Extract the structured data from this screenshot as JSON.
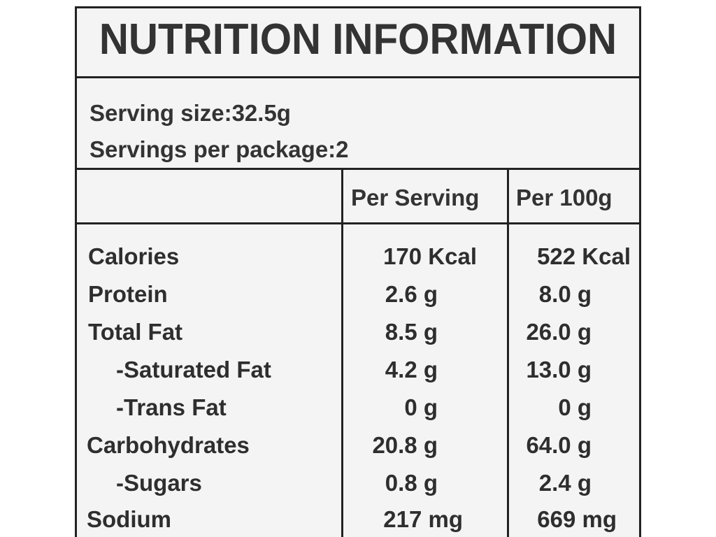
{
  "title": "NUTRITION INFORMATION",
  "serving": {
    "size_line": "Serving size:32.5g",
    "per_package_line": "Servings per package:2"
  },
  "columns": {
    "per_serving": "Per Serving",
    "per_100g": "Per 100g"
  },
  "rows": [
    {
      "nutrient": "Calories",
      "per_serving": "170 Kcal",
      "per_100g": "522 Kcal"
    },
    {
      "nutrient": "Protein",
      "per_serving": "2.6 g",
      "per_100g": "8.0 g"
    },
    {
      "nutrient": "Total Fat",
      "per_serving": "8.5 g",
      "per_100g": "26.0 g"
    },
    {
      "nutrient": "-Saturated Fat",
      "per_serving": "4.2 g",
      "per_100g": "13.0 g"
    },
    {
      "nutrient": "-Trans Fat",
      "per_serving": "0 g",
      "per_100g": "0 g"
    },
    {
      "nutrient": "Carbohydrates",
      "per_serving": "20.8 g",
      "per_100g": "64.0 g"
    },
    {
      "nutrient": "-Sugars",
      "per_serving": "0.8 g",
      "per_100g": "2.4 g"
    },
    {
      "nutrient": "Sodium",
      "per_serving": "217 mg",
      "per_100g": "669 mg"
    }
  ]
}
